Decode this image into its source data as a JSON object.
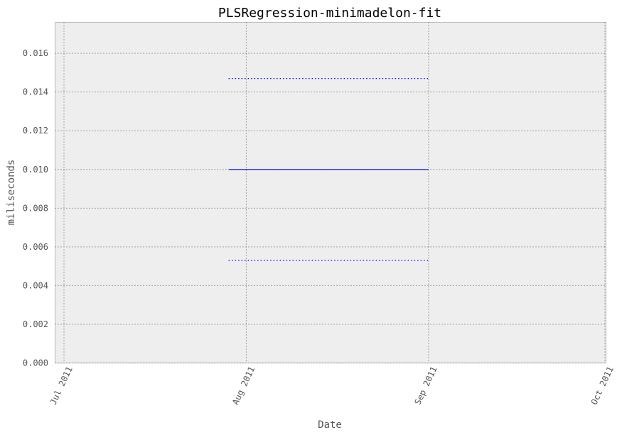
{
  "chart_data": {
    "type": "line",
    "title": "PLSRegression-minimadelon-fit",
    "xlabel": "Date",
    "ylabel": "miliseconds",
    "x_axis_type": "date",
    "xlim": [
      "2011-07-01",
      "2011-10-01"
    ],
    "ylim": [
      0,
      0.0176
    ],
    "x_ticks": [
      {
        "date": "2011-07-01",
        "label": "Jul 2011"
      },
      {
        "date": "2011-08-01",
        "label": "Aug 2011"
      },
      {
        "date": "2011-09-01",
        "label": "Sep 2011"
      },
      {
        "date": "2011-10-01",
        "label": "Oct 2011"
      }
    ],
    "y_ticks": [
      {
        "value": 0.0,
        "label": "0.000"
      },
      {
        "value": 0.002,
        "label": "0.002"
      },
      {
        "value": 0.004,
        "label": "0.004"
      },
      {
        "value": 0.006,
        "label": "0.006"
      },
      {
        "value": 0.008,
        "label": "0.008"
      },
      {
        "value": 0.01,
        "label": "0.010"
      },
      {
        "value": 0.012,
        "label": "0.012"
      },
      {
        "value": 0.014,
        "label": "0.014"
      },
      {
        "value": 0.016,
        "label": "0.016"
      }
    ],
    "grid": true,
    "series": [
      {
        "style": "solid",
        "color": "#0000ff",
        "x": [
          "2011-07-29",
          "2011-09-01"
        ],
        "values": [
          0.01,
          0.01
        ]
      },
      {
        "style": "dotted",
        "color": "#0000ff",
        "x": [
          "2011-07-29",
          "2011-09-01"
        ],
        "values": [
          0.0147,
          0.0147
        ]
      },
      {
        "style": "dotted",
        "color": "#0000ff",
        "x": [
          "2011-07-29",
          "2011-09-01"
        ],
        "values": [
          0.0053,
          0.0053
        ]
      }
    ]
  }
}
